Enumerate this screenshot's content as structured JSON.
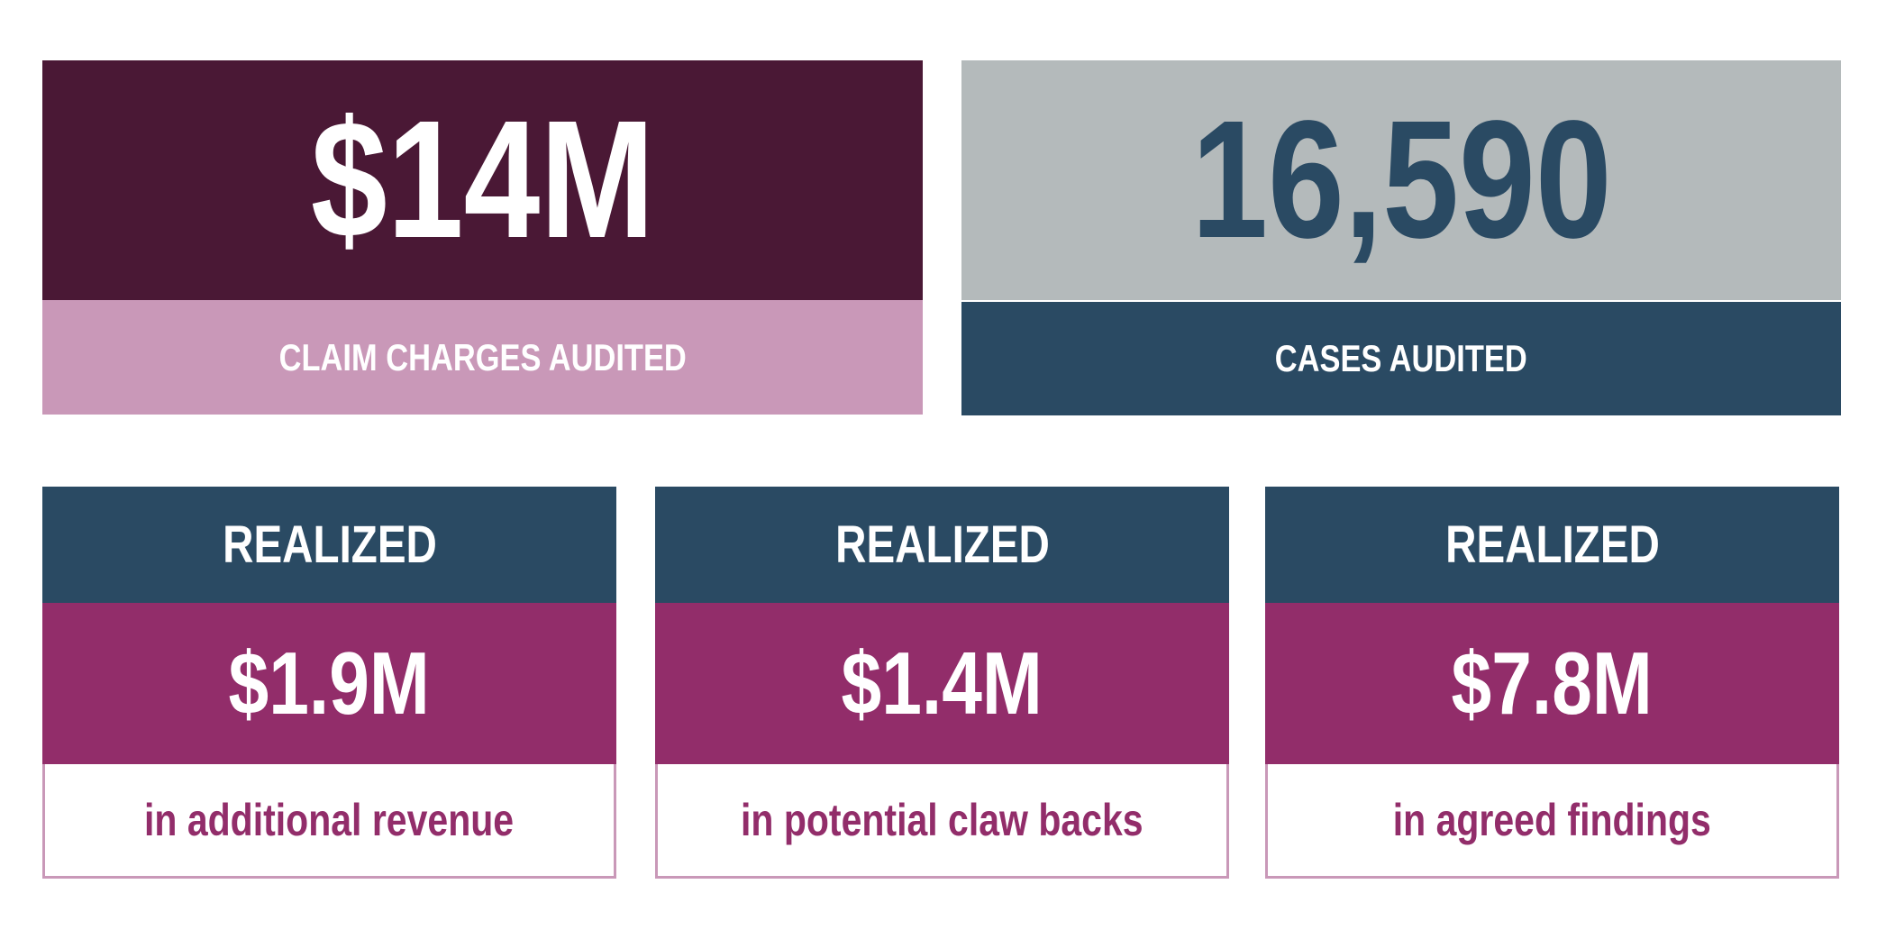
{
  "cards": [
    {
      "value": "$14M",
      "label": "CLAIM CHARGES AUDITED"
    },
    {
      "value": "16,590",
      "label": "CASES AUDITED"
    }
  ],
  "realized": [
    {
      "heading": "REALIZED",
      "value": "$1.9M",
      "description": "in additional revenue"
    },
    {
      "heading": "REALIZED",
      "value": "$1.4M",
      "description": "in potential claw backs"
    },
    {
      "heading": "REALIZED",
      "value": "$7.8M",
      "description": "in agreed findings"
    }
  ]
}
